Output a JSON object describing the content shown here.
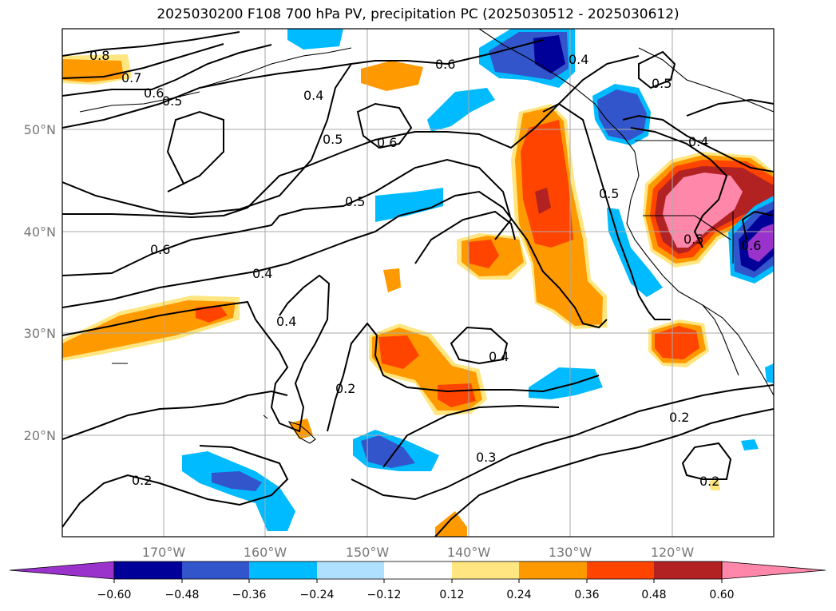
{
  "title": "2025030200 F108 700 hPa PV, precipitation PC (2025030512 - 2025030612)",
  "lat_labels": [
    "50°N",
    "40°N",
    "30°N",
    "20°N"
  ],
  "lon_labels": [
    "170°W",
    "160°W",
    "150°W",
    "140°W",
    "130°W",
    "120°W"
  ],
  "contour_labels": [
    "0.8",
    "0.7",
    "0.6",
    "0.5",
    "0.4",
    "0.6",
    "0.5",
    "0.6",
    "0.4",
    "0.5",
    "0.4",
    "0.5",
    "0.5",
    "0.6",
    "0.4",
    "0.4",
    "0.5",
    "0.6",
    "0.2",
    "0.4",
    "0.2",
    "0.3",
    "0.2",
    "0.2"
  ],
  "colorbar": {
    "ticks": [
      "−0.60",
      "−0.48",
      "−0.36",
      "−0.24",
      "−0.12",
      "0.12",
      "0.24",
      "0.36",
      "0.48",
      "0.60"
    ],
    "colors": [
      "#9933cc",
      "#000099",
      "#3355cc",
      "#00bbff",
      "#b0e0ff",
      "#ffffff",
      "#ffe680",
      "#ff9900",
      "#ff4400",
      "#b22222",
      "#ff88aa"
    ]
  }
}
